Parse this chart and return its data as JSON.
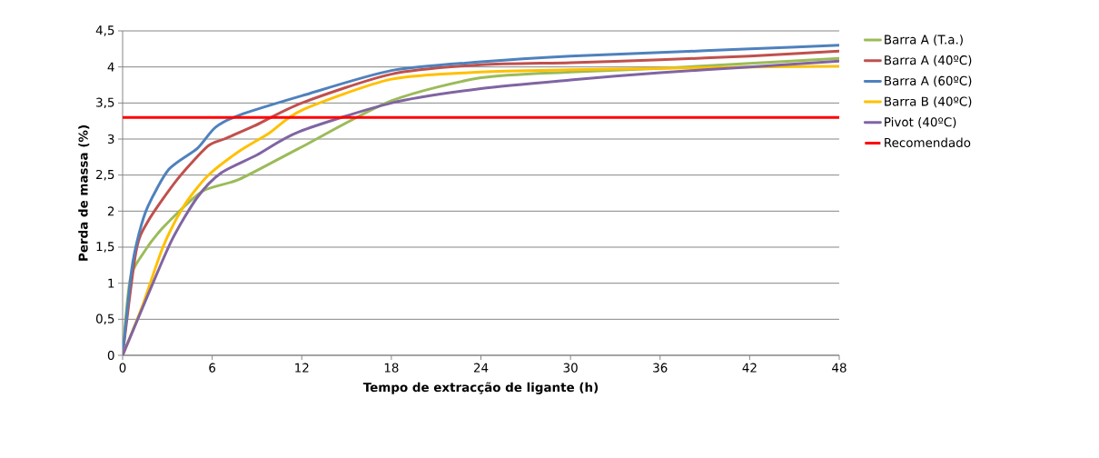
{
  "chart_data": {
    "type": "line",
    "xlabel": "Tempo de extracção de ligante (h)",
    "ylabel": "Perda de massa (%)",
    "xlim": [
      0,
      48
    ],
    "ylim": [
      0,
      4.5
    ],
    "xticks": [
      0,
      6,
      12,
      18,
      24,
      30,
      36,
      42,
      48
    ],
    "yticks": [
      0,
      {
        "value": 0.5,
        "label": "0,5"
      },
      1,
      {
        "value": 1.5,
        "label": "1,5"
      },
      2,
      {
        "value": 2.5,
        "label": "2,5"
      },
      3,
      {
        "value": 3.5,
        "label": "3,5"
      },
      4,
      {
        "value": 4.5,
        "label": "4,5"
      }
    ],
    "grid": "y",
    "legend": "right",
    "marker": "none",
    "line_style": "solid",
    "series": [
      {
        "name": "Barra A (T.a.)",
        "color": "#9bbb59",
        "x": [
          0,
          0.5,
          1.3,
          2.7,
          5.3,
          7.8,
          11.8,
          18,
          24,
          30,
          36,
          42,
          48
        ],
        "values": [
          0,
          1.05,
          1.39,
          1.77,
          2.27,
          2.44,
          2.87,
          3.53,
          3.85,
          3.93,
          3.98,
          4.05,
          4.12
        ]
      },
      {
        "name": "Barra A (40ºC)",
        "color": "#c0504d",
        "x": [
          0,
          0.9,
          1.7,
          3.7,
          5.7,
          6.8,
          8.8,
          12,
          18,
          24,
          30,
          36,
          42,
          48
        ],
        "values": [
          0,
          1.44,
          1.86,
          2.45,
          2.9,
          3.0,
          3.18,
          3.5,
          3.9,
          4.03,
          4.06,
          4.1,
          4.15,
          4.22
        ]
      },
      {
        "name": "Barra A (60ºC)",
        "color": "#4f81bd",
        "x": [
          0,
          0.6,
          1.1,
          1.7,
          3.1,
          5.0,
          6.2,
          7.8,
          12,
          18,
          24,
          30,
          36,
          42,
          48
        ],
        "values": [
          0,
          1.18,
          1.69,
          2.07,
          2.58,
          2.87,
          3.16,
          3.33,
          3.6,
          3.95,
          4.07,
          4.15,
          4.2,
          4.25,
          4.3
        ]
      },
      {
        "name": "Barra B (40ºC)",
        "color": "#ffc000",
        "x": [
          0,
          1.3,
          2.7,
          4.1,
          5.7,
          7.8,
          9.8,
          12,
          18,
          24,
          30,
          36,
          42,
          48
        ],
        "values": [
          0,
          0.67,
          1.5,
          2.07,
          2.49,
          2.83,
          3.08,
          3.4,
          3.83,
          3.93,
          3.96,
          3.98,
          4.0,
          4.01
        ]
      },
      {
        "name": "Pivot (40ºC)",
        "color": "#8064a2",
        "x": [
          0,
          1.7,
          3.3,
          5.0,
          6.6,
          9.0,
          11.8,
          18,
          24,
          30,
          36,
          42,
          48
        ],
        "values": [
          0,
          0.84,
          1.6,
          2.19,
          2.53,
          2.78,
          3.1,
          3.5,
          3.7,
          3.82,
          3.92,
          4.0,
          4.08
        ]
      }
    ],
    "ref_lines": [
      {
        "axis": "y",
        "value": 3.3,
        "label": "Recomendado",
        "color": "#ff0000",
        "line_style": "solid"
      }
    ]
  }
}
